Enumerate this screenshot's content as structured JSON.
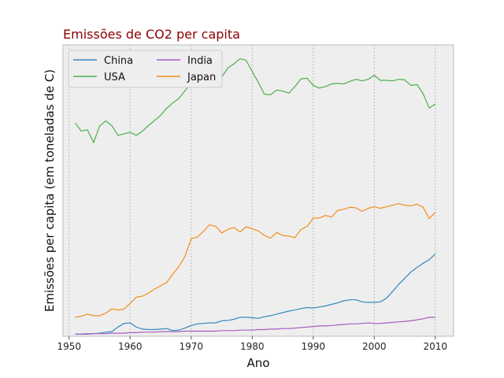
{
  "chart_data": {
    "type": "line",
    "title": "Emissões de CO2 per capita",
    "xlabel": "Ano",
    "ylabel": "Emissões per capita (em toneladas de C)",
    "xlim": [
      1949,
      2013
    ],
    "ylim": [
      -0.02,
      5.65
    ],
    "xticks": [
      1950,
      1960,
      1970,
      1980,
      1990,
      2000,
      2010
    ],
    "show_y_ticks": false,
    "grid": "x-dashed",
    "legend_position": "top-left",
    "legend_columns": 2,
    "colors": {
      "background": "#eeeeee",
      "title": "#8b0000",
      "grid": "#b0b0b0",
      "frame": "#bcbcbc"
    },
    "x": [
      1951,
      1952,
      1953,
      1954,
      1955,
      1956,
      1957,
      1958,
      1959,
      1960,
      1961,
      1962,
      1963,
      1964,
      1965,
      1966,
      1967,
      1968,
      1969,
      1970,
      1971,
      1972,
      1973,
      1974,
      1975,
      1976,
      1977,
      1978,
      1979,
      1980,
      1981,
      1982,
      1983,
      1984,
      1985,
      1986,
      1987,
      1988,
      1989,
      1990,
      1991,
      1992,
      1993,
      1994,
      1995,
      1996,
      1997,
      1998,
      1999,
      2000,
      2001,
      2002,
      2003,
      2004,
      2005,
      2006,
      2007,
      2008,
      2009,
      2010
    ],
    "series": [
      {
        "name": "China",
        "color": "#348abd",
        "values": [
          0.02,
          0.02,
          0.03,
          0.03,
          0.04,
          0.06,
          0.07,
          0.16,
          0.23,
          0.24,
          0.16,
          0.12,
          0.11,
          0.11,
          0.12,
          0.13,
          0.09,
          0.1,
          0.14,
          0.19,
          0.22,
          0.23,
          0.24,
          0.24,
          0.28,
          0.29,
          0.31,
          0.35,
          0.35,
          0.34,
          0.33,
          0.36,
          0.38,
          0.41,
          0.44,
          0.47,
          0.49,
          0.52,
          0.54,
          0.53,
          0.55,
          0.57,
          0.6,
          0.63,
          0.67,
          0.69,
          0.69,
          0.65,
          0.64,
          0.64,
          0.65,
          0.72,
          0.85,
          0.99,
          1.11,
          1.23,
          1.32,
          1.4,
          1.47,
          1.58
        ]
      },
      {
        "name": "USA",
        "color": "#4daf4a",
        "values": [
          4.13,
          3.97,
          4.0,
          3.75,
          4.07,
          4.17,
          4.08,
          3.89,
          3.92,
          3.95,
          3.89,
          3.97,
          4.08,
          4.18,
          4.28,
          4.42,
          4.52,
          4.61,
          4.76,
          4.91,
          4.98,
          5.24,
          5.47,
          5.23,
          5.02,
          5.2,
          5.28,
          5.38,
          5.35,
          5.13,
          4.92,
          4.69,
          4.68,
          4.77,
          4.75,
          4.71,
          4.84,
          4.99,
          5.0,
          4.86,
          4.81,
          4.84,
          4.89,
          4.9,
          4.89,
          4.94,
          4.98,
          4.95,
          4.98,
          5.06,
          4.96,
          4.96,
          4.95,
          4.98,
          4.97,
          4.86,
          4.88,
          4.7,
          4.42,
          4.5
        ]
      },
      {
        "name": "India",
        "color": "#a65ec2",
        "values": [
          0.02,
          0.02,
          0.02,
          0.03,
          0.03,
          0.03,
          0.04,
          0.04,
          0.04,
          0.05,
          0.05,
          0.06,
          0.06,
          0.06,
          0.07,
          0.07,
          0.07,
          0.07,
          0.08,
          0.08,
          0.08,
          0.08,
          0.08,
          0.08,
          0.09,
          0.09,
          0.09,
          0.1,
          0.1,
          0.1,
          0.11,
          0.11,
          0.12,
          0.12,
          0.13,
          0.13,
          0.14,
          0.15,
          0.16,
          0.17,
          0.18,
          0.18,
          0.19,
          0.2,
          0.21,
          0.22,
          0.22,
          0.23,
          0.24,
          0.23,
          0.23,
          0.24,
          0.25,
          0.26,
          0.27,
          0.28,
          0.3,
          0.32,
          0.35,
          0.35
        ]
      },
      {
        "name": "Japan",
        "color": "#f28e1c",
        "values": [
          0.35,
          0.37,
          0.41,
          0.38,
          0.38,
          0.43,
          0.51,
          0.49,
          0.51,
          0.62,
          0.74,
          0.76,
          0.82,
          0.9,
          0.96,
          1.03,
          1.19,
          1.34,
          1.54,
          1.88,
          1.91,
          2.02,
          2.15,
          2.12,
          1.99,
          2.06,
          2.1,
          2.01,
          2.11,
          2.07,
          2.03,
          1.94,
          1.89,
          2.0,
          1.94,
          1.93,
          1.9,
          2.06,
          2.12,
          2.28,
          2.28,
          2.33,
          2.3,
          2.43,
          2.45,
          2.49,
          2.48,
          2.41,
          2.47,
          2.5,
          2.47,
          2.5,
          2.53,
          2.56,
          2.53,
          2.52,
          2.55,
          2.49,
          2.27,
          2.39
        ]
      }
    ]
  }
}
